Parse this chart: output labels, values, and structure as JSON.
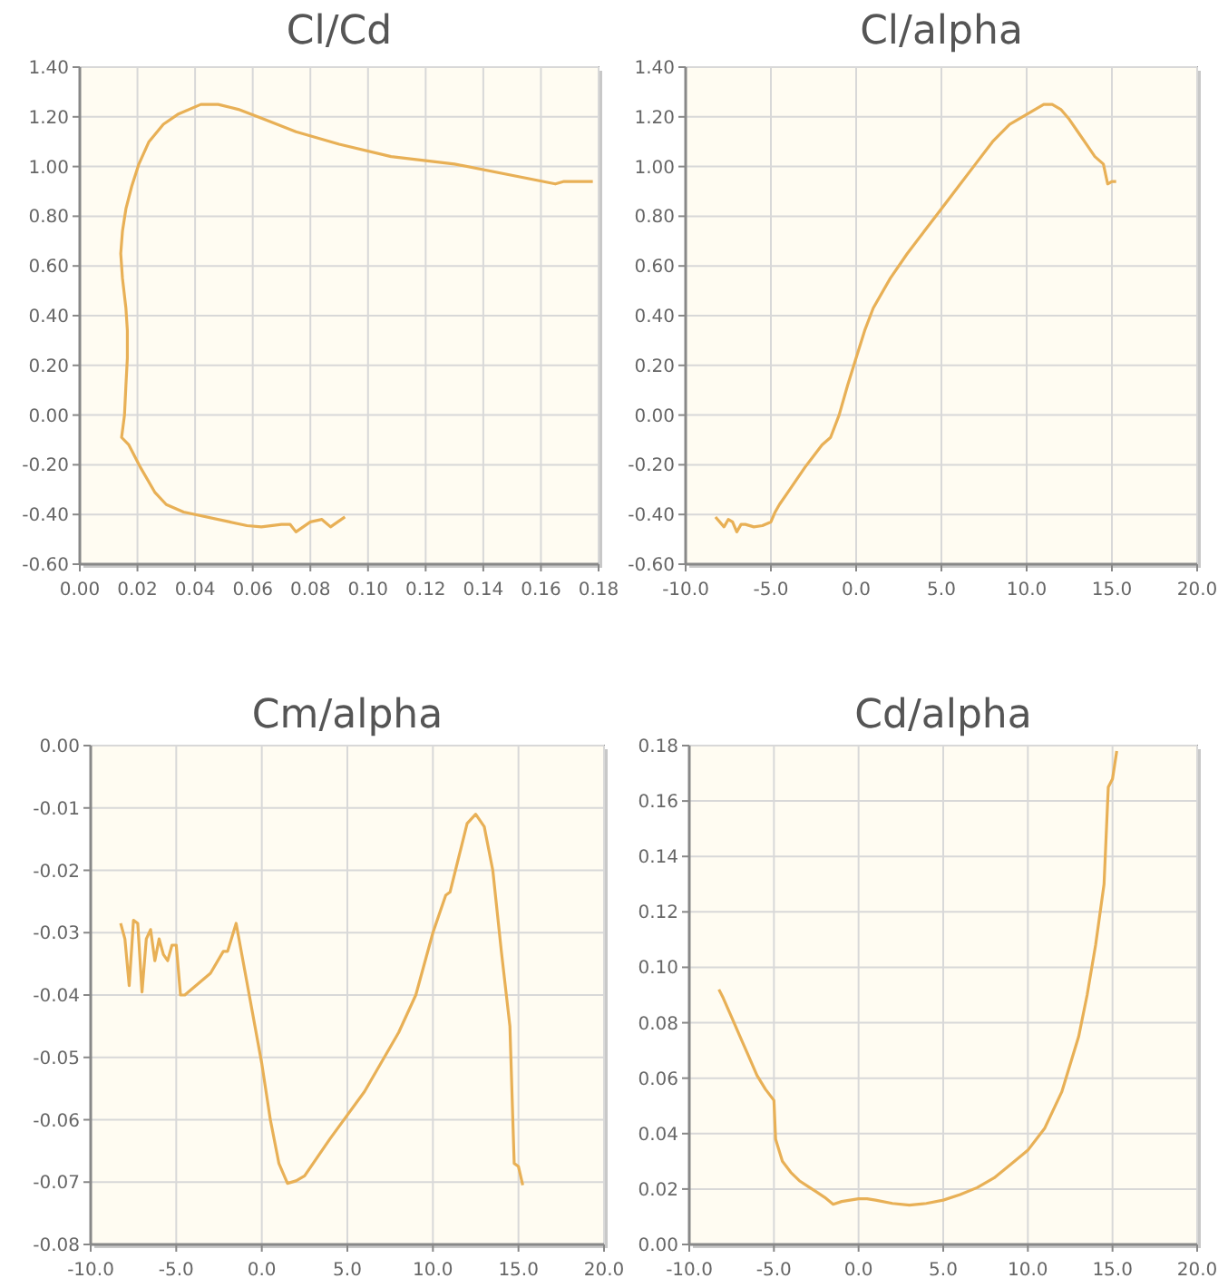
{
  "chart_data": [
    {
      "type": "line",
      "title": "Cl/Cd",
      "grid": true,
      "xlim": [
        0,
        0.18
      ],
      "ylim": [
        -0.6,
        1.4
      ],
      "xticks": [
        {
          "value": 0,
          "label": "0.00"
        },
        {
          "value": 0.02,
          "label": "0.02"
        },
        {
          "value": 0.04,
          "label": "0.04"
        },
        {
          "value": 0.06,
          "label": "0.06"
        },
        {
          "value": 0.08,
          "label": "0.08"
        },
        {
          "value": 0.1,
          "label": "0.10"
        },
        {
          "value": 0.12,
          "label": "0.12"
        },
        {
          "value": 0.14,
          "label": "0.14"
        },
        {
          "value": 0.16,
          "label": "0.16"
        },
        {
          "value": 0.18,
          "label": "0.18"
        }
      ],
      "yticks": [
        {
          "value": -0.6,
          "label": "-0.60"
        },
        {
          "value": -0.4,
          "label": "-0.40"
        },
        {
          "value": -0.2,
          "label": "-0.20"
        },
        {
          "value": 0,
          "label": "0.00"
        },
        {
          "value": 0.2,
          "label": "0.20"
        },
        {
          "value": 0.4,
          "label": "0.40"
        },
        {
          "value": 0.6,
          "label": "0.60"
        },
        {
          "value": 0.8,
          "label": "0.80"
        },
        {
          "value": 1,
          "label": "1.00"
        },
        {
          "value": 1.2,
          "label": "1.20"
        },
        {
          "value": 1.4,
          "label": "1.40"
        }
      ],
      "series": [
        {
          "color": "#e8b056",
          "x": [
            0.092,
            0.087,
            0.084,
            0.08,
            0.075,
            0.073,
            0.07,
            0.063,
            0.058,
            0.052,
            0.036,
            0.03,
            0.026,
            0.021,
            0.017,
            0.0145,
            0.0155,
            0.016,
            0.0165,
            0.0165,
            0.016,
            0.0148,
            0.0142,
            0.0148,
            0.016,
            0.018,
            0.0205,
            0.024,
            0.029,
            0.034,
            0.042,
            0.048,
            0.055,
            0.064,
            0.075,
            0.09,
            0.108,
            0.13,
            0.165,
            0.168,
            0.178
          ],
          "values": [
            -0.41,
            -0.45,
            -0.42,
            -0.43,
            -0.47,
            -0.44,
            -0.44,
            -0.45,
            -0.445,
            -0.43,
            -0.39,
            -0.36,
            -0.31,
            -0.21,
            -0.12,
            -0.09,
            0.0,
            0.12,
            0.23,
            0.34,
            0.43,
            0.55,
            0.65,
            0.74,
            0.83,
            0.92,
            1.01,
            1.1,
            1.17,
            1.21,
            1.25,
            1.25,
            1.23,
            1.19,
            1.14,
            1.09,
            1.04,
            1.01,
            0.93,
            0.94,
            0.94
          ]
        }
      ]
    },
    {
      "type": "line",
      "title": "Cl/alpha",
      "grid": true,
      "xlim": [
        -10,
        20
      ],
      "ylim": [
        -0.6,
        1.4
      ],
      "xticks": [
        {
          "value": -10,
          "label": "-10.0"
        },
        {
          "value": -5,
          "label": "-5.0"
        },
        {
          "value": 0,
          "label": "0.0"
        },
        {
          "value": 5,
          "label": "5.0"
        },
        {
          "value": 10,
          "label": "10.0"
        },
        {
          "value": 15,
          "label": "15.0"
        },
        {
          "value": 20,
          "label": "20.0"
        }
      ],
      "yticks": [
        {
          "value": -0.6,
          "label": "-0.60"
        },
        {
          "value": -0.4,
          "label": "-0.40"
        },
        {
          "value": -0.2,
          "label": "-0.20"
        },
        {
          "value": 0,
          "label": "0.00"
        },
        {
          "value": 0.2,
          "label": "0.20"
        },
        {
          "value": 0.4,
          "label": "0.40"
        },
        {
          "value": 0.6,
          "label": "0.60"
        },
        {
          "value": 0.8,
          "label": "0.80"
        },
        {
          "value": 1,
          "label": "1.00"
        },
        {
          "value": 1.2,
          "label": "1.20"
        },
        {
          "value": 1.4,
          "label": "1.40"
        }
      ],
      "series": [
        {
          "color": "#e8b056",
          "x": [
            -8.25,
            -7.75,
            -7.5,
            -7.25,
            -7,
            -6.75,
            -6.5,
            -6,
            -5.5,
            -5,
            -4.75,
            -4.5,
            -4,
            -3,
            -2,
            -1.5,
            -1,
            -0.5,
            0,
            0.5,
            1,
            2,
            3,
            4,
            5,
            6,
            7,
            8,
            9,
            10,
            11,
            11.5,
            12,
            12.5,
            13,
            13.5,
            14,
            14.5,
            14.75,
            15,
            15.25
          ],
          "values": [
            -0.41,
            -0.45,
            -0.42,
            -0.43,
            -0.47,
            -0.44,
            -0.44,
            -0.45,
            -0.445,
            -0.43,
            -0.39,
            -0.36,
            -0.31,
            -0.21,
            -0.12,
            -0.09,
            0.0,
            0.12,
            0.23,
            0.34,
            0.43,
            0.55,
            0.65,
            0.74,
            0.83,
            0.92,
            1.01,
            1.1,
            1.17,
            1.21,
            1.25,
            1.25,
            1.23,
            1.19,
            1.14,
            1.09,
            1.04,
            1.01,
            0.93,
            0.94,
            0.94
          ]
        }
      ]
    },
    {
      "type": "line",
      "title": "Cm/alpha",
      "grid": true,
      "xlim": [
        -10,
        20
      ],
      "ylim": [
        -0.08,
        0
      ],
      "xticks": [
        {
          "value": -10,
          "label": "-10.0"
        },
        {
          "value": -5,
          "label": "-5.0"
        },
        {
          "value": 0,
          "label": "0.0"
        },
        {
          "value": 5,
          "label": "5.0"
        },
        {
          "value": 10,
          "label": "10.0"
        },
        {
          "value": 15,
          "label": "15.0"
        },
        {
          "value": 20,
          "label": "20.0"
        }
      ],
      "yticks": [
        {
          "value": -0.08,
          "label": "-0.08"
        },
        {
          "value": -0.07,
          "label": "-0.07"
        },
        {
          "value": -0.06,
          "label": "-0.06"
        },
        {
          "value": -0.05,
          "label": "-0.05"
        },
        {
          "value": -0.04,
          "label": "-0.04"
        },
        {
          "value": -0.03,
          "label": "-0.03"
        },
        {
          "value": -0.02,
          "label": "-0.02"
        },
        {
          "value": -0.01,
          "label": "-0.01"
        },
        {
          "value": 0,
          "label": "0.00"
        }
      ],
      "series": [
        {
          "color": "#e8b056",
          "x": [
            -8.25,
            -8,
            -7.75,
            -7.5,
            -7.25,
            -7,
            -6.75,
            -6.5,
            -6.25,
            -6,
            -5.75,
            -5.5,
            -5.25,
            -5,
            -4.75,
            -4.5,
            -3,
            -2.25,
            -2,
            -1.5,
            -1,
            0,
            0.5,
            1,
            1.5,
            2,
            2.5,
            4,
            6,
            8,
            9,
            10,
            10.75,
            11,
            11.5,
            12,
            12.5,
            13,
            13.5,
            14,
            14.5,
            14.75,
            15,
            15.25
          ],
          "values": [
            -0.0285,
            -0.031,
            -0.0385,
            -0.028,
            -0.0285,
            -0.0395,
            -0.031,
            -0.0295,
            -0.0345,
            -0.031,
            -0.0335,
            -0.0345,
            -0.032,
            -0.032,
            -0.04,
            -0.04,
            -0.0365,
            -0.033,
            -0.033,
            -0.0285,
            -0.036,
            -0.051,
            -0.06,
            -0.067,
            -0.0702,
            -0.0698,
            -0.069,
            -0.063,
            -0.0555,
            -0.046,
            -0.04,
            -0.03,
            -0.024,
            -0.0235,
            -0.018,
            -0.0125,
            -0.011,
            -0.013,
            -0.02,
            -0.033,
            -0.045,
            -0.067,
            -0.0675,
            -0.0705
          ]
        }
      ]
    },
    {
      "type": "line",
      "title": "Cd/alpha",
      "grid": true,
      "xlim": [
        -10,
        20
      ],
      "ylim": [
        0,
        0.18
      ],
      "xticks": [
        {
          "value": -10,
          "label": "-10.0"
        },
        {
          "value": -5,
          "label": "-5.0"
        },
        {
          "value": 0,
          "label": "0.0"
        },
        {
          "value": 5,
          "label": "5.0"
        },
        {
          "value": 10,
          "label": "10.0"
        },
        {
          "value": 15,
          "label": "15.0"
        },
        {
          "value": 20,
          "label": "20.0"
        }
      ],
      "yticks": [
        {
          "value": 0,
          "label": "0.00"
        },
        {
          "value": 0.02,
          "label": "0.02"
        },
        {
          "value": 0.04,
          "label": "0.04"
        },
        {
          "value": 0.06,
          "label": "0.06"
        },
        {
          "value": 0.08,
          "label": "0.08"
        },
        {
          "value": 0.1,
          "label": "0.10"
        },
        {
          "value": 0.12,
          "label": "0.12"
        },
        {
          "value": 0.14,
          "label": "0.14"
        },
        {
          "value": 0.16,
          "label": "0.16"
        },
        {
          "value": 0.18,
          "label": "0.18"
        }
      ],
      "series": [
        {
          "color": "#e8b056",
          "x": [
            -8.25,
            -8,
            -7.5,
            -7,
            -6.5,
            -6,
            -5.5,
            -5,
            -4.9,
            -4.5,
            -4,
            -3.5,
            -3,
            -2.5,
            -2,
            -1.5,
            -1,
            -0.5,
            0,
            0.5,
            1,
            2,
            3,
            4,
            5,
            6,
            7,
            8,
            9,
            10,
            11,
            12,
            13,
            13.5,
            14,
            14.5,
            14.75,
            15,
            15.25
          ],
          "values": [
            0.092,
            0.089,
            0.082,
            0.075,
            0.068,
            0.061,
            0.056,
            0.052,
            0.038,
            0.03,
            0.026,
            0.023,
            0.021,
            0.019,
            0.017,
            0.0145,
            0.0155,
            0.016,
            0.0165,
            0.0165,
            0.016,
            0.0148,
            0.0142,
            0.0148,
            0.016,
            0.018,
            0.0205,
            0.024,
            0.029,
            0.034,
            0.042,
            0.055,
            0.075,
            0.09,
            0.108,
            0.13,
            0.165,
            0.168,
            0.178
          ]
        }
      ]
    }
  ]
}
